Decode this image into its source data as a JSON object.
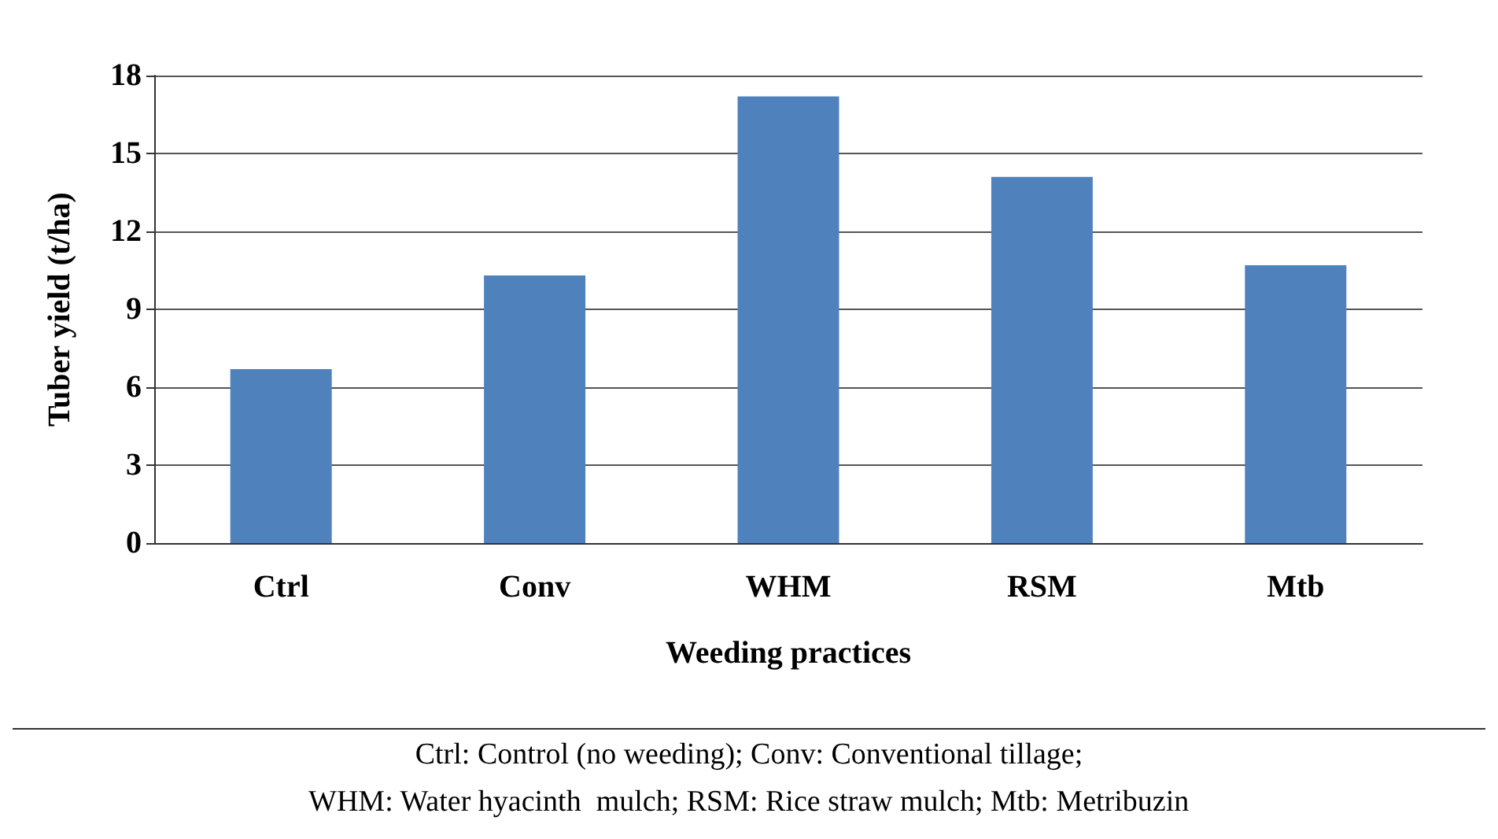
{
  "chart_data": {
    "type": "bar",
    "xlabel": "Weeding practices",
    "ylabel": "Tuber yield (t/ha)",
    "categories": [
      "Ctrl",
      "Conv",
      "WHM",
      "RSM",
      "Mtb"
    ],
    "values": [
      6.7,
      10.3,
      17.2,
      14.1,
      10.7
    ],
    "color": "#4f81bd",
    "ylim": [
      0,
      18
    ],
    "yticks": [
      0,
      3,
      6,
      9,
      12,
      15,
      18
    ],
    "grid": "y",
    "annotations": [
      "Ctrl: Control (no weeding); Conv: Conventional tillage;",
      "WHM: Water hyacinth  mulch; RSM: Rice straw mulch; Mtb: Metribuzin"
    ]
  }
}
